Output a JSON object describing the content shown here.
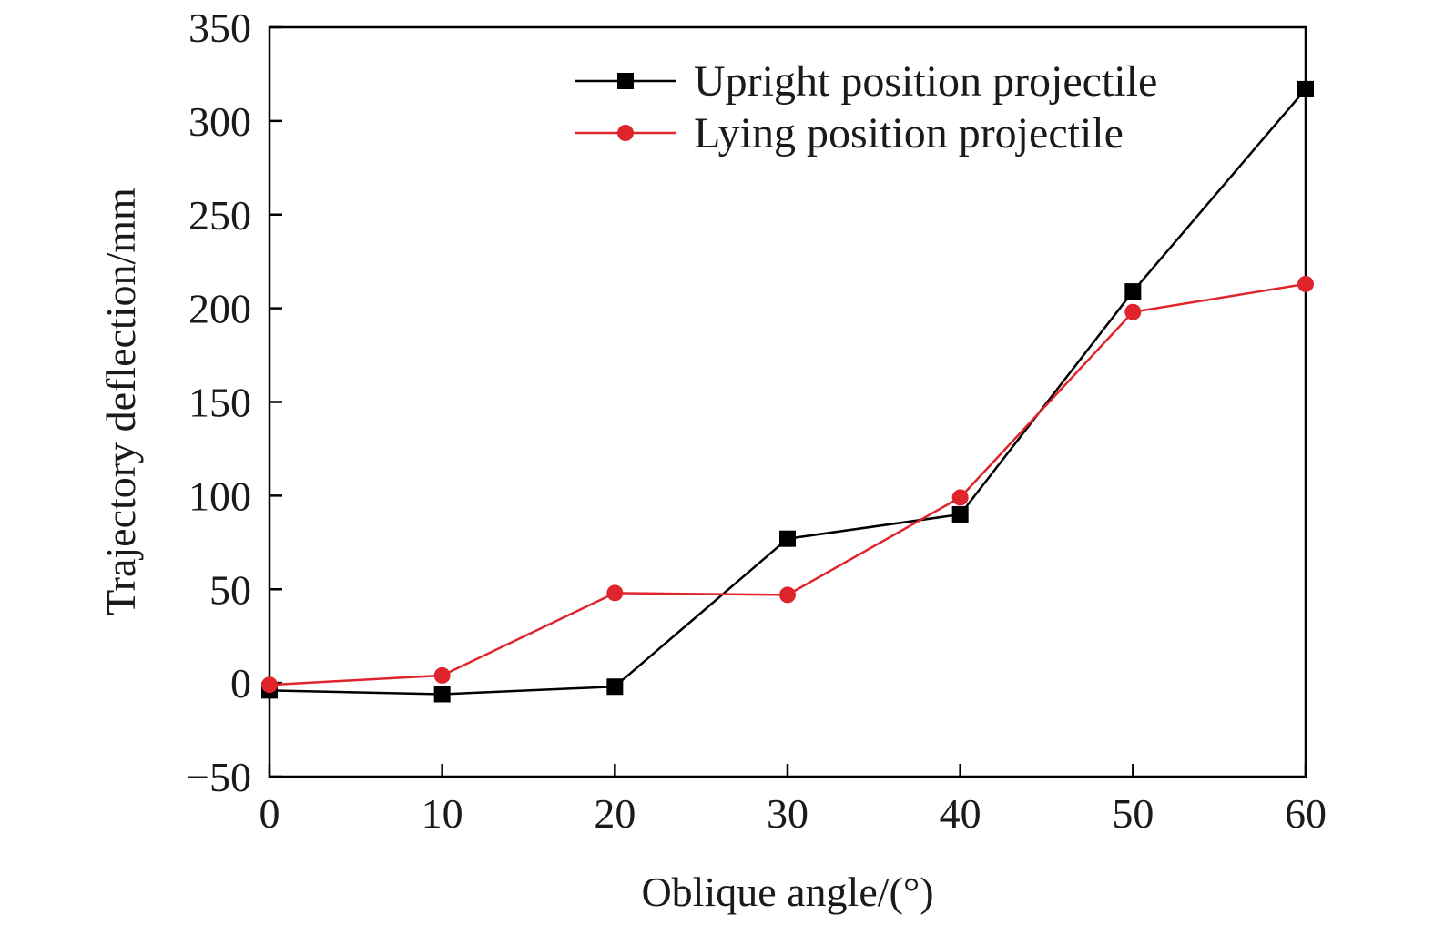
{
  "chart_data": {
    "type": "line",
    "title": "",
    "xlabel": "Oblique angle/(°)",
    "ylabel": "Trajectory deflection/mm",
    "xlim": [
      0,
      60
    ],
    "ylim": [
      -50,
      350
    ],
    "xticks": [
      0,
      10,
      20,
      30,
      40,
      50,
      60
    ],
    "yticks": [
      -50,
      0,
      50,
      100,
      150,
      200,
      250,
      300,
      350
    ],
    "xtick_labels": [
      "0",
      "10",
      "20",
      "30",
      "40",
      "50",
      "60"
    ],
    "ytick_labels": [
      "−50",
      "0",
      "50",
      "100",
      "150",
      "200",
      "250",
      "300",
      "350"
    ],
    "grid": false,
    "legend_position": "top-right",
    "x": [
      0,
      10,
      20,
      30,
      40,
      50,
      60
    ],
    "series": [
      {
        "name": "Upright position projectile",
        "color": "#000000",
        "marker": "square",
        "values": [
          -4,
          -6,
          -2,
          77,
          90,
          209,
          317
        ]
      },
      {
        "name": "Lying position projectile",
        "color": "#e0242b",
        "marker": "circle",
        "values": [
          -1,
          4,
          48,
          47,
          99,
          198,
          213
        ]
      }
    ]
  }
}
